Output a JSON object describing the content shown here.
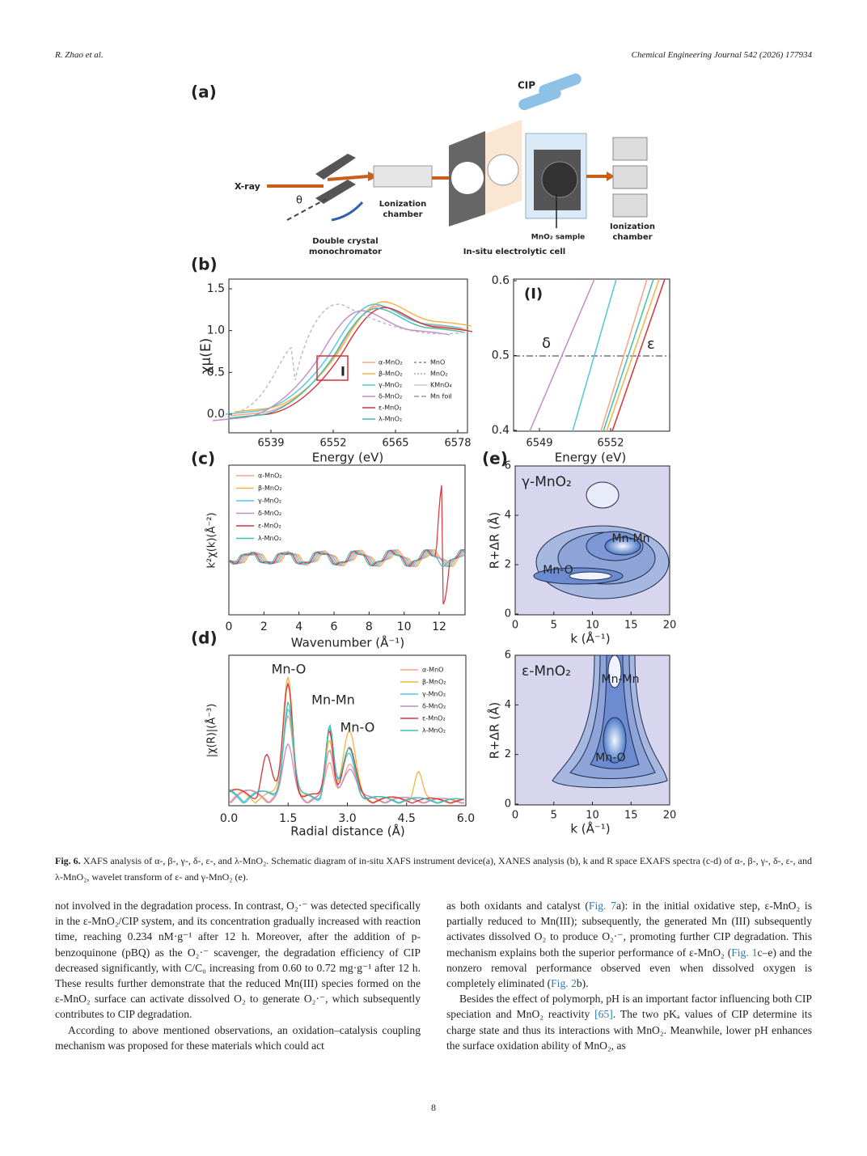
{
  "header": {
    "authors": "R. Zhao et al.",
    "journal": "Chemical Engineering Journal 542 (2026) 177934"
  },
  "figure": {
    "panel_a": {
      "label": "(a)",
      "cip": "CIP",
      "xray": "X-ray",
      "theta": "θ",
      "chamber1": [
        "Lonization",
        "chamber"
      ],
      "monochromator": [
        "Double crystal",
        "monochromator"
      ],
      "sample": "MnO₂ sample",
      "cell": "In-situ electrolytic cell",
      "chamber2": [
        "Ionization",
        "chamber"
      ]
    },
    "panel_b": {
      "label": "(b)",
      "y_label": "χμ(E)",
      "x_label": "Energy (eV)",
      "yticks": [
        "0.0",
        "0.5",
        "1.0",
        "1.5"
      ],
      "xticks": [
        "6539",
        "6552",
        "6565",
        "6578"
      ],
      "marker": "I",
      "legend": [
        "α-MnO₂",
        "β-MnO₂",
        "γ-MnO₂",
        "δ-MnO₂",
        "ε-MnO₂",
        "λ-MnO₂",
        "MnO",
        "MnO₂",
        "KMnO₄",
        "Mn foil"
      ]
    },
    "panel_b_inset": {
      "label": "(I)",
      "yticks": [
        "0.4",
        "0.5",
        "0.6"
      ],
      "xticks": [
        "6549",
        "6552"
      ],
      "x_label": "Energy (eV)",
      "delta": "δ",
      "epsilon": "ε"
    },
    "panel_c": {
      "label": "(c)",
      "y_label": "k²χ(k)(Å⁻²)",
      "x_label": "Wavenumber (Å⁻¹)",
      "xticks": [
        "0",
        "2",
        "4",
        "6",
        "8",
        "10",
        "12"
      ],
      "legend": [
        "α-MnO₂",
        "β-MnO₂",
        "γ-MnO₂",
        "δ-MnO₂",
        "ε-MnO₂",
        "λ-MnO₂"
      ]
    },
    "panel_d": {
      "label": "(d)",
      "y_label": "|χ(R)|(Å⁻³)",
      "x_label": "Radial distance (Å)",
      "xticks": [
        "0.0",
        "1.5",
        "3.0",
        "4.5",
        "6.0"
      ],
      "annotations": [
        "Mn-O",
        "Mn-Mn",
        "Mn-O"
      ],
      "legend": [
        "α-MnO",
        "β-MnO₂",
        "γ-MnO₂",
        "δ-MnO₂",
        "ε-MnO₂",
        "λ-MnO₂"
      ]
    },
    "panel_e": {
      "label": "(e)",
      "top": {
        "title": "γ-MnO₂",
        "annotations": [
          "Mn-Mn",
          "Mn-O"
        ]
      },
      "bottom": {
        "title": "ε-MnO₂",
        "annotations": [
          "Mn-Mn",
          "Mn-O"
        ]
      },
      "yticks": [
        "0",
        "2",
        "4",
        "6"
      ],
      "xticks": [
        "0",
        "5",
        "10",
        "15",
        "20"
      ],
      "x_label": "k (Å⁻¹)",
      "y_label": "R+ΔR (Å)"
    }
  },
  "caption": {
    "label": "Fig. 6.",
    "text": "XAFS analysis of α-, β-, γ-, δ-, ε-, and λ-MnO₂. Schematic diagram of in-situ XAFS instrument device(a), XANES analysis (b), k and R space EXAFS spectra (c-d) of α-, β-, γ-, δ-, ε-, and λ-MnO₂, wavelet transform of ε- and γ-MnO₂ (e)."
  },
  "body": {
    "left": [
      [
        "not involved in the degradation process. In contrast, O₂·⁻ was detected specifically in the ε-MnO₂/CIP system, and its concentration gradually increased with reaction time, reaching 0.234 nM·g⁻¹ after 12 h. Moreover, after the addition of p-benzoquinone (pBQ) as the O₂·⁻ scavenger, the degradation efficiency of CIP decreased significantly, with C/C₀ increasing from 0.60 to 0.72 mg·g⁻¹ after 12 h. These results further demonstrate that the reduced Mn(III) species formed on the ε-MnO₂ surface can activate dissolved O₂ to generate O₂·⁻, which subsequently contributes to CIP degradation."
      ],
      [
        "According to above mentioned observations, an oxidation–catalysis coupling mechanism was proposed for these materials which could act"
      ]
    ],
    "right": [
      [
        "as both oxidants and catalyst (",
        "Fig. 7",
        "a): in the initial oxidative step, ε-MnO₂ is partially reduced to Mn(III); subsequently, the generated Mn (III) subsequently activates dissolved O₂ to produce O₂·⁻, promoting further CIP degradation. This mechanism explains both the superior performance of ε-MnO₂ (",
        "Fig. 1",
        "c–e) and the nonzero removal performance observed even when dissolved oxygen is completely eliminated (",
        "Fig. 2",
        "b)."
      ],
      [
        "Besides the effect of polymorph, pH is an important factor influencing both CIP speciation and MnO₂ reactivity ",
        "[65]",
        ". The two pKₐ values of CIP determine its charge state and thus its interactions with MnO₂. Meanwhile, lower pH enhances the surface oxidation ability of MnO₂, as"
      ]
    ]
  },
  "page_number": "8"
}
